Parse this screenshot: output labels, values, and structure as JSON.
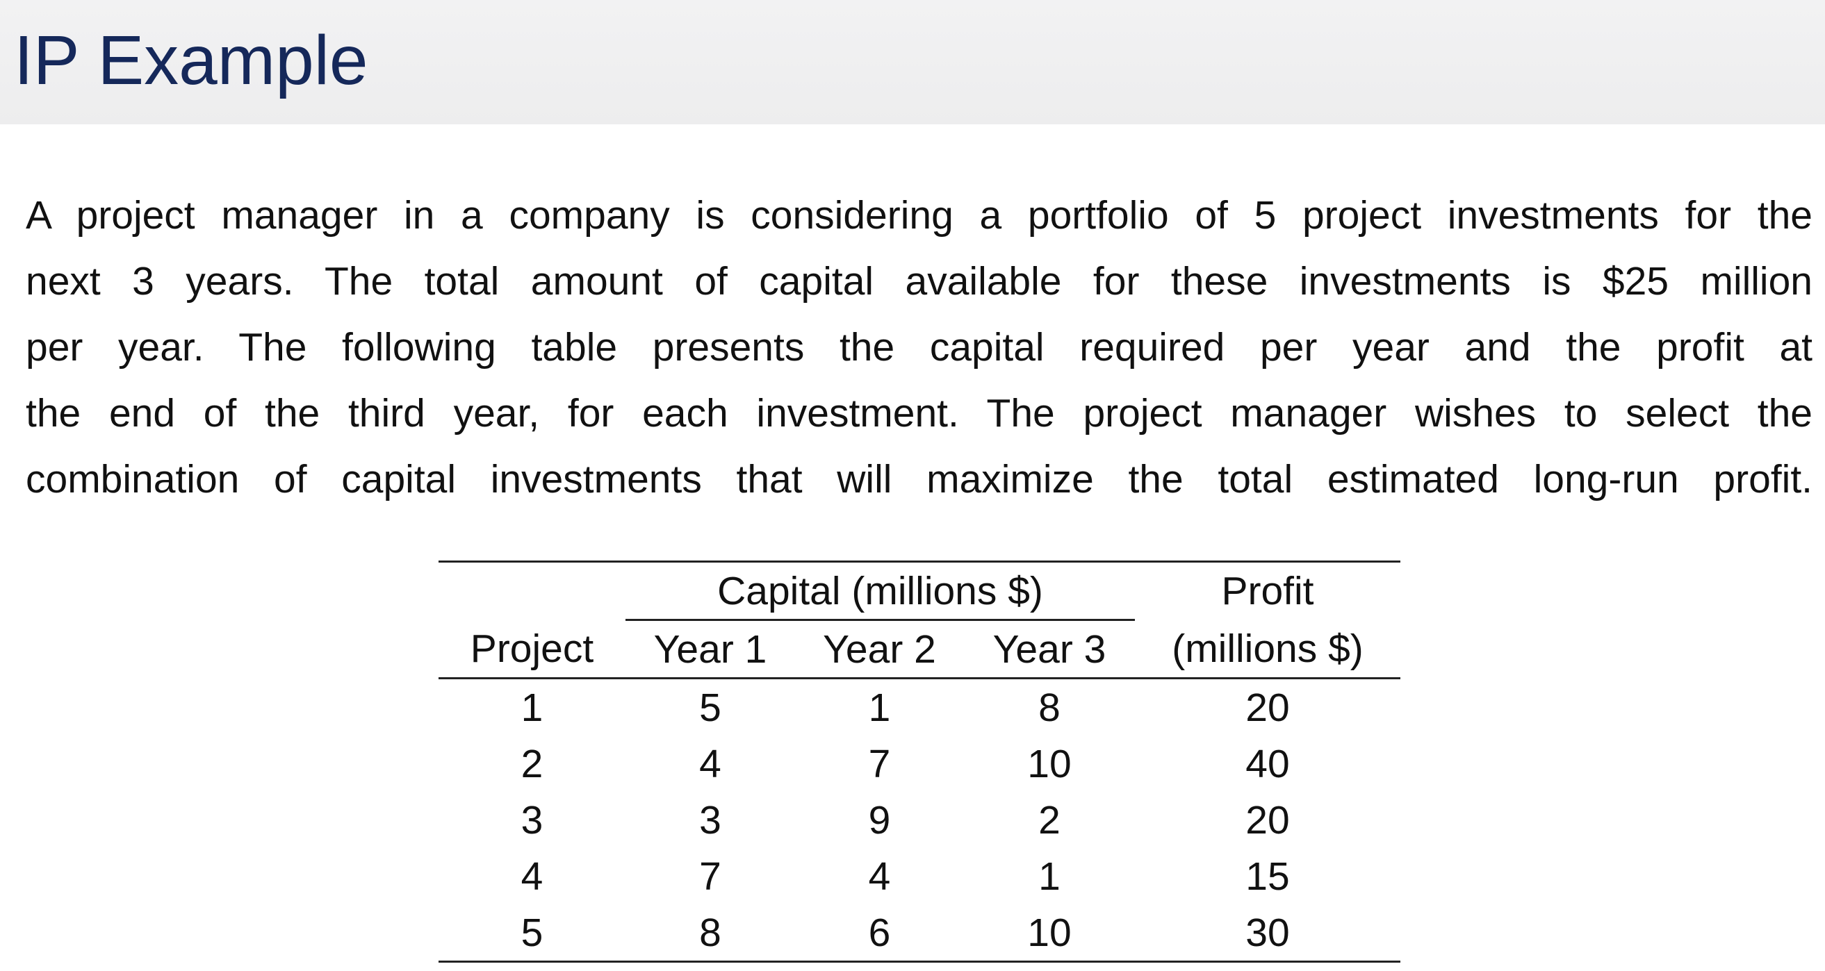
{
  "header": {
    "title": "IP Example"
  },
  "paragraph": [
    "A project manager in a company is considering a portfolio of 5 project investments for the",
    "next 3 years.  The total amount of capital available for these investments is $25 million",
    "per year.  The following table presents the capital required per year and the profit at",
    "the end of the third year, for each investment.  The project manager wishes to select the",
    "combination of capital investments that will maximize the total estimated long-run profit."
  ],
  "table": {
    "group_headers": [
      "Capital (millions $)",
      "Profit"
    ],
    "columns": [
      "Project",
      "Year 1",
      "Year 2",
      "Year 3",
      "(millions $)"
    ],
    "rows": [
      [
        1,
        5,
        1,
        8,
        20
      ],
      [
        2,
        4,
        7,
        10,
        40
      ],
      [
        3,
        3,
        9,
        2,
        20
      ],
      [
        4,
        7,
        4,
        1,
        15
      ],
      [
        5,
        8,
        6,
        10,
        30
      ]
    ]
  }
}
